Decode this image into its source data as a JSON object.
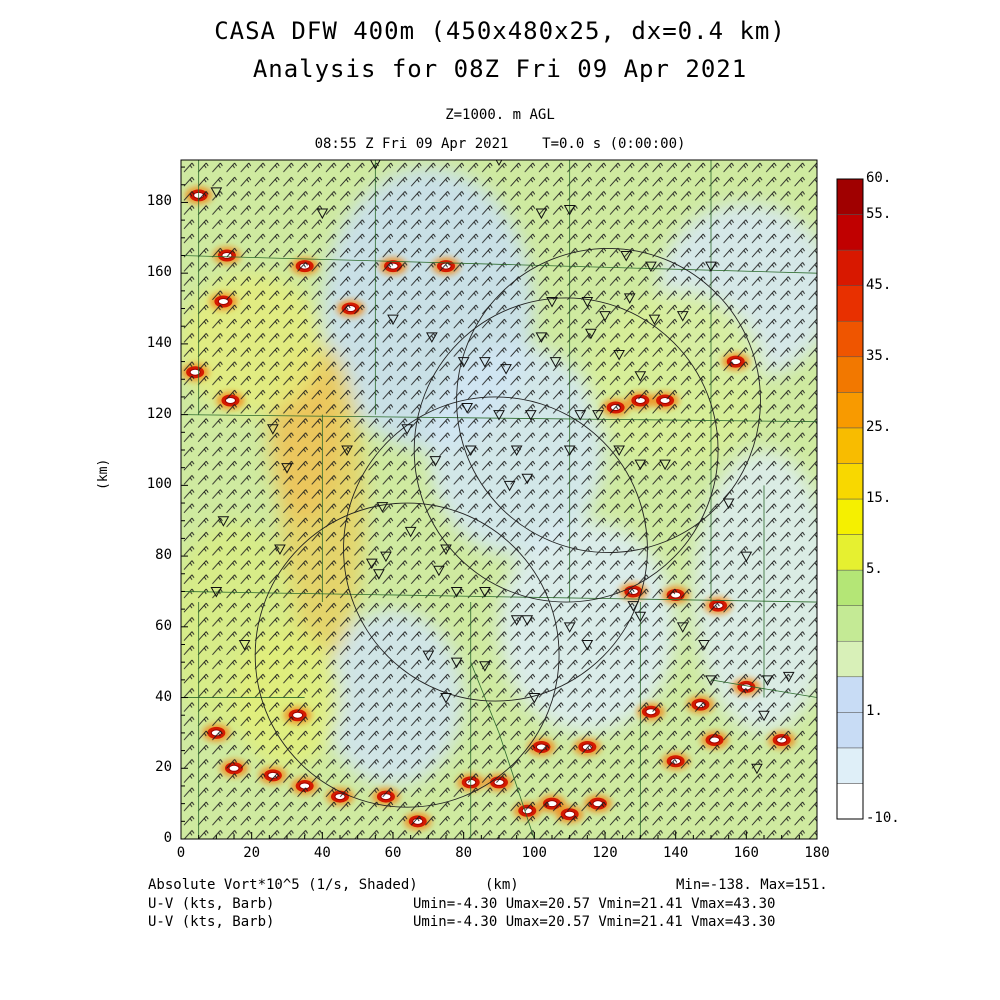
{
  "title_line1": "CASA DFW 400m (450x480x25, dx=0.4 km)",
  "title_line2": "Analysis for 08Z Fri 09 Apr 2021",
  "level_label": "Z=1000. m AGL",
  "time_label": "08:55 Z Fri 09 Apr 2021    T=0.0 s (0:00:00)",
  "y_axis_label": "(km)",
  "x_axis_label": "(km)",
  "x_ticks": [
    "0",
    "20",
    "40",
    "60",
    "80",
    "100",
    "120",
    "140",
    "160",
    "180"
  ],
  "y_ticks": [
    "0",
    "20",
    "40",
    "60",
    "80",
    "100",
    "120",
    "140",
    "160",
    "180"
  ],
  "colorbar_labels": [
    "60.",
    "55.",
    "45.",
    "35.",
    "25.",
    "15.",
    "5.",
    "1.",
    "-10."
  ],
  "colorbar_colors": [
    "#ffffff",
    "#dfeff8",
    "#c8dcf5",
    "#c8dcf5",
    "#d8f0b8",
    "#c4ea95",
    "#b4e676",
    "#e6f030",
    "#f5f000",
    "#f8d800",
    "#f8bc00",
    "#f89a00",
    "#f27800",
    "#ef5500",
    "#e83000",
    "#d81800",
    "#c00000",
    "#a00000"
  ],
  "footer": {
    "field_label": "Absolute Vort*10^5 (1/s, Shaded)",
    "x_unit": "(km)",
    "minmax": "Min=-138. Max=151.",
    "wind1_label": "U-V (kts, Barb)",
    "wind1_stats": "Umin=-4.30 Umax=20.57 Vmin=21.41 Vmax=43.30",
    "wind2_label": "U-V (kts, Barb)",
    "wind2_stats": "Umin=-4.30 Umax=20.57 Vmin=21.41 Vmax=43.30"
  },
  "map_data": {
    "x_range_km": [
      0,
      180
    ],
    "y_range_km": [
      0,
      192
    ],
    "radar_ranges": [
      {
        "cx": 109,
        "cy": 110,
        "r": 43
      },
      {
        "cx": 89,
        "cy": 82,
        "r": 43
      },
      {
        "cx": 64,
        "cy": 52,
        "r": 43
      },
      {
        "cx": 121,
        "cy": 124,
        "r": 43
      }
    ],
    "vorticity_maxima": [
      {
        "x": 5,
        "y": 182
      },
      {
        "x": 13,
        "y": 165
      },
      {
        "x": 12,
        "y": 152
      },
      {
        "x": 4,
        "y": 132
      },
      {
        "x": 14,
        "y": 124
      },
      {
        "x": 35,
        "y": 162
      },
      {
        "x": 48,
        "y": 150
      },
      {
        "x": 60,
        "y": 162
      },
      {
        "x": 75,
        "y": 162
      },
      {
        "x": 123,
        "y": 122
      },
      {
        "x": 130,
        "y": 124
      },
      {
        "x": 137,
        "y": 124
      },
      {
        "x": 157,
        "y": 135
      },
      {
        "x": 152,
        "y": 66
      },
      {
        "x": 140,
        "y": 69
      },
      {
        "x": 128,
        "y": 70
      },
      {
        "x": 133,
        "y": 36
      },
      {
        "x": 147,
        "y": 38
      },
      {
        "x": 140,
        "y": 22
      },
      {
        "x": 151,
        "y": 28
      },
      {
        "x": 160,
        "y": 43
      },
      {
        "x": 170,
        "y": 28
      },
      {
        "x": 10,
        "y": 30
      },
      {
        "x": 15,
        "y": 20
      },
      {
        "x": 26,
        "y": 18
      },
      {
        "x": 33,
        "y": 35
      },
      {
        "x": 35,
        "y": 15
      },
      {
        "x": 45,
        "y": 12
      },
      {
        "x": 58,
        "y": 12
      },
      {
        "x": 67,
        "y": 5
      },
      {
        "x": 82,
        "y": 16
      },
      {
        "x": 90,
        "y": 16
      },
      {
        "x": 98,
        "y": 8
      },
      {
        "x": 105,
        "y": 10
      },
      {
        "x": 110,
        "y": 7
      },
      {
        "x": 118,
        "y": 10
      },
      {
        "x": 102,
        "y": 26
      },
      {
        "x": 115,
        "y": 26
      }
    ],
    "obs_stations": [
      {
        "x": 55,
        "y": 191
      },
      {
        "x": 90,
        "y": 192
      },
      {
        "x": 10,
        "y": 183
      },
      {
        "x": 40,
        "y": 177
      },
      {
        "x": 102,
        "y": 177
      },
      {
        "x": 110,
        "y": 178
      },
      {
        "x": 126,
        "y": 165
      },
      {
        "x": 133,
        "y": 162
      },
      {
        "x": 150,
        "y": 162
      },
      {
        "x": 105,
        "y": 152
      },
      {
        "x": 115,
        "y": 152
      },
      {
        "x": 120,
        "y": 148
      },
      {
        "x": 127,
        "y": 153
      },
      {
        "x": 134,
        "y": 147
      },
      {
        "x": 142,
        "y": 148
      },
      {
        "x": 60,
        "y": 147
      },
      {
        "x": 71,
        "y": 142
      },
      {
        "x": 80,
        "y": 135
      },
      {
        "x": 86,
        "y": 135
      },
      {
        "x": 92,
        "y": 133
      },
      {
        "x": 102,
        "y": 142
      },
      {
        "x": 106,
        "y": 135
      },
      {
        "x": 116,
        "y": 143
      },
      {
        "x": 124,
        "y": 137
      },
      {
        "x": 130,
        "y": 131
      },
      {
        "x": 81,
        "y": 122
      },
      {
        "x": 90,
        "y": 120
      },
      {
        "x": 99,
        "y": 120
      },
      {
        "x": 113,
        "y": 120
      },
      {
        "x": 118,
        "y": 120
      },
      {
        "x": 64,
        "y": 116
      },
      {
        "x": 72,
        "y": 107
      },
      {
        "x": 82,
        "y": 110
      },
      {
        "x": 95,
        "y": 110
      },
      {
        "x": 93,
        "y": 100
      },
      {
        "x": 98,
        "y": 102
      },
      {
        "x": 110,
        "y": 110
      },
      {
        "x": 124,
        "y": 110
      },
      {
        "x": 130,
        "y": 106
      },
      {
        "x": 137,
        "y": 106
      },
      {
        "x": 47,
        "y": 110
      },
      {
        "x": 57,
        "y": 94
      },
      {
        "x": 65,
        "y": 87
      },
      {
        "x": 75,
        "y": 82
      },
      {
        "x": 54,
        "y": 78
      },
      {
        "x": 56,
        "y": 75
      },
      {
        "x": 58,
        "y": 80
      },
      {
        "x": 73,
        "y": 76
      },
      {
        "x": 78,
        "y": 70
      },
      {
        "x": 86,
        "y": 70
      },
      {
        "x": 95,
        "y": 62
      },
      {
        "x": 98,
        "y": 62
      },
      {
        "x": 110,
        "y": 60
      },
      {
        "x": 115,
        "y": 55
      },
      {
        "x": 128,
        "y": 66
      },
      {
        "x": 130,
        "y": 63
      },
      {
        "x": 142,
        "y": 60
      },
      {
        "x": 148,
        "y": 55
      },
      {
        "x": 12,
        "y": 90
      },
      {
        "x": 28,
        "y": 82
      },
      {
        "x": 30,
        "y": 105
      },
      {
        "x": 26,
        "y": 116
      },
      {
        "x": 155,
        "y": 95
      },
      {
        "x": 166,
        "y": 45
      },
      {
        "x": 172,
        "y": 46
      },
      {
        "x": 165,
        "y": 35
      },
      {
        "x": 163,
        "y": 20
      },
      {
        "x": 150,
        "y": 45
      },
      {
        "x": 160,
        "y": 80
      },
      {
        "x": 70,
        "y": 52
      },
      {
        "x": 78,
        "y": 50
      },
      {
        "x": 86,
        "y": 49
      },
      {
        "x": 75,
        "y": 40
      },
      {
        "x": 100,
        "y": 40
      },
      {
        "x": 18,
        "y": 55
      },
      {
        "x": 10,
        "y": 70
      }
    ]
  }
}
